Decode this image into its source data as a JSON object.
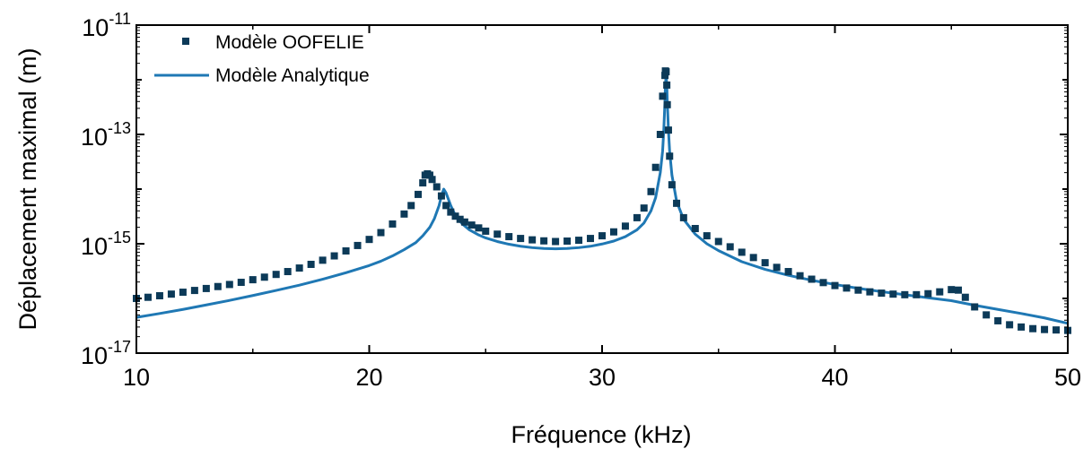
{
  "chart_data": {
    "type": "line",
    "title": "",
    "xlabel": "Fréquence (kHz)",
    "ylabel": "Déplacement maximal (m)",
    "xlim": [
      10,
      50
    ],
    "ylim": [
      1e-17,
      1e-11
    ],
    "yscale": "log",
    "grid": false,
    "legend_position": "top-left",
    "x_ticks": [
      10,
      20,
      30,
      40,
      50
    ],
    "y_ticks": [
      {
        "base": "10",
        "exp": "-17",
        "value": 1e-17
      },
      {
        "base": "10",
        "exp": "-15",
        "value": 1e-15
      },
      {
        "base": "10",
        "exp": "-13",
        "value": 1e-13
      },
      {
        "base": "10",
        "exp": "-11",
        "value": 1e-11
      }
    ],
    "colors": {
      "oofelie": "#0c3a58",
      "analytique": "#1f78b4"
    },
    "series": [
      {
        "name": "Modèle OOFELIE",
        "style": "square-markers",
        "x": [
          10,
          10.5,
          11,
          11.5,
          12,
          12.5,
          13,
          13.5,
          14,
          14.5,
          15,
          15.5,
          16,
          16.5,
          17,
          17.5,
          18,
          18.5,
          19,
          19.5,
          20,
          20.5,
          21,
          21.5,
          21.8,
          22.1,
          22.3,
          22.4,
          22.5,
          22.6,
          22.7,
          22.9,
          23.1,
          23.3,
          23.5,
          23.7,
          23.9,
          24.1,
          24.4,
          24.7,
          25,
          25.5,
          26,
          26.5,
          27,
          27.5,
          28,
          28.5,
          29,
          29.5,
          30,
          30.5,
          31,
          31.5,
          31.8,
          32.1,
          32.3,
          32.5,
          32.6,
          32.7,
          32.72,
          32.75,
          32.78,
          32.8,
          32.85,
          32.9,
          33,
          33.2,
          33.5,
          34,
          34.5,
          35,
          35.5,
          36,
          36.5,
          37,
          37.5,
          38,
          38.5,
          39,
          39.5,
          40,
          40.5,
          41,
          41.5,
          42,
          42.5,
          43,
          43.5,
          44,
          44.5,
          45,
          45.3,
          45.6,
          46,
          46.5,
          47,
          47.5,
          48,
          48.5,
          49,
          49.5,
          50
        ],
        "y": [
          1e-16,
          1.05e-16,
          1.12e-16,
          1.2e-16,
          1.3e-16,
          1.4e-16,
          1.52e-16,
          1.65e-16,
          1.8e-16,
          1.97e-16,
          2.2e-16,
          2.45e-16,
          2.75e-16,
          3.1e-16,
          3.6e-16,
          4.2e-16,
          5e-16,
          6e-16,
          7.4e-16,
          9.3e-16,
          1.2e-15,
          1.6e-15,
          2.3e-15,
          3.5e-15,
          5e-15,
          8e-15,
          1.3e-14,
          1.8e-14,
          1.9e-14,
          1.8e-14,
          1.5e-14,
          1.1e-14,
          7.5e-15,
          5e-15,
          3.8e-15,
          3.2e-15,
          2.8e-15,
          2.5e-15,
          2.2e-15,
          1.95e-15,
          1.7e-15,
          1.5e-15,
          1.35e-15,
          1.25e-15,
          1.18e-15,
          1.13e-15,
          1.1e-15,
          1.12e-15,
          1.16e-15,
          1.25e-15,
          1.4e-15,
          1.65e-15,
          2.1e-15,
          3e-15,
          4.5e-15,
          9e-15,
          2.5e-14,
          1e-13,
          5e-13,
          1.2e-12,
          1.45e-12,
          1.4e-12,
          8e-13,
          3.5e-13,
          1.2e-13,
          4e-14,
          1.2e-14,
          5.5e-15,
          3e-15,
          1.9e-15,
          1.4e-15,
          1.1e-15,
          8.8e-16,
          7e-16,
          5.6e-16,
          4.5e-16,
          3.7e-16,
          3.1e-16,
          2.6e-16,
          2.25e-16,
          1.95e-16,
          1.72e-16,
          1.55e-16,
          1.42e-16,
          1.32e-16,
          1.25e-16,
          1.2e-16,
          1.17e-16,
          1.17e-16,
          1.22e-16,
          1.32e-16,
          1.45e-16,
          1.42e-16,
          1.05e-16,
          7e-17,
          5e-17,
          3.9e-17,
          3.3e-17,
          3e-17,
          2.8e-17,
          2.7e-17,
          2.65e-17,
          2.6e-17
        ]
      },
      {
        "name": "Modèle Analytique",
        "style": "line",
        "x": [
          10,
          11,
          12,
          13,
          14,
          15,
          16,
          17,
          18,
          19,
          20,
          20.5,
          21,
          21.5,
          22,
          22.3,
          22.6,
          22.8,
          23,
          23.1,
          23.2,
          23.3,
          23.5,
          23.7,
          24,
          24.3,
          24.7,
          25,
          25.5,
          26,
          26.5,
          27,
          27.5,
          28,
          28.5,
          29,
          29.5,
          30,
          30.5,
          31,
          31.5,
          31.8,
          32.1,
          32.3,
          32.5,
          32.6,
          32.65,
          32.7,
          32.72,
          32.75,
          32.78,
          32.8,
          32.85,
          32.9,
          33,
          33.2,
          33.5,
          34,
          34.5,
          35,
          36,
          37,
          38,
          39,
          40,
          41,
          42,
          43,
          44,
          45,
          46,
          47,
          48,
          49,
          50
        ],
        "y": [
          4.5e-17,
          5.3e-17,
          6.3e-17,
          7.6e-17,
          9.2e-17,
          1.13e-16,
          1.4e-16,
          1.75e-16,
          2.25e-16,
          2.95e-16,
          4e-16,
          4.8e-16,
          6e-16,
          7.8e-16,
          1.05e-15,
          1.4e-15,
          2e-15,
          2.9e-15,
          5e-15,
          7.5e-15,
          1e-14,
          8.5e-15,
          5e-15,
          3.3e-15,
          2.3e-15,
          1.8e-15,
          1.45e-15,
          1.28e-15,
          1.1e-15,
          9.8e-16,
          9e-16,
          8.5e-16,
          8.2e-16,
          8.1e-16,
          8.2e-16,
          8.5e-16,
          9e-16,
          9.9e-16,
          1.12e-15,
          1.35e-15,
          1.8e-15,
          2.4e-15,
          4e-15,
          7e-15,
          2e-14,
          5e-14,
          1.2e-13,
          4e-13,
          8e-13,
          1.2e-12,
          8e-13,
          4e-13,
          1.2e-13,
          5e-14,
          1.8e-14,
          6e-15,
          2.8e-15,
          1.5e-15,
          1e-15,
          7.5e-16,
          4.7e-16,
          3.4e-16,
          2.65e-16,
          2.15e-16,
          1.8e-16,
          1.53e-16,
          1.33e-16,
          1.17e-16,
          1.03e-16,
          9.1e-17,
          7.5e-17,
          6.3e-17,
          5.3e-17,
          4.4e-17,
          3.5e-17
        ]
      }
    ]
  }
}
